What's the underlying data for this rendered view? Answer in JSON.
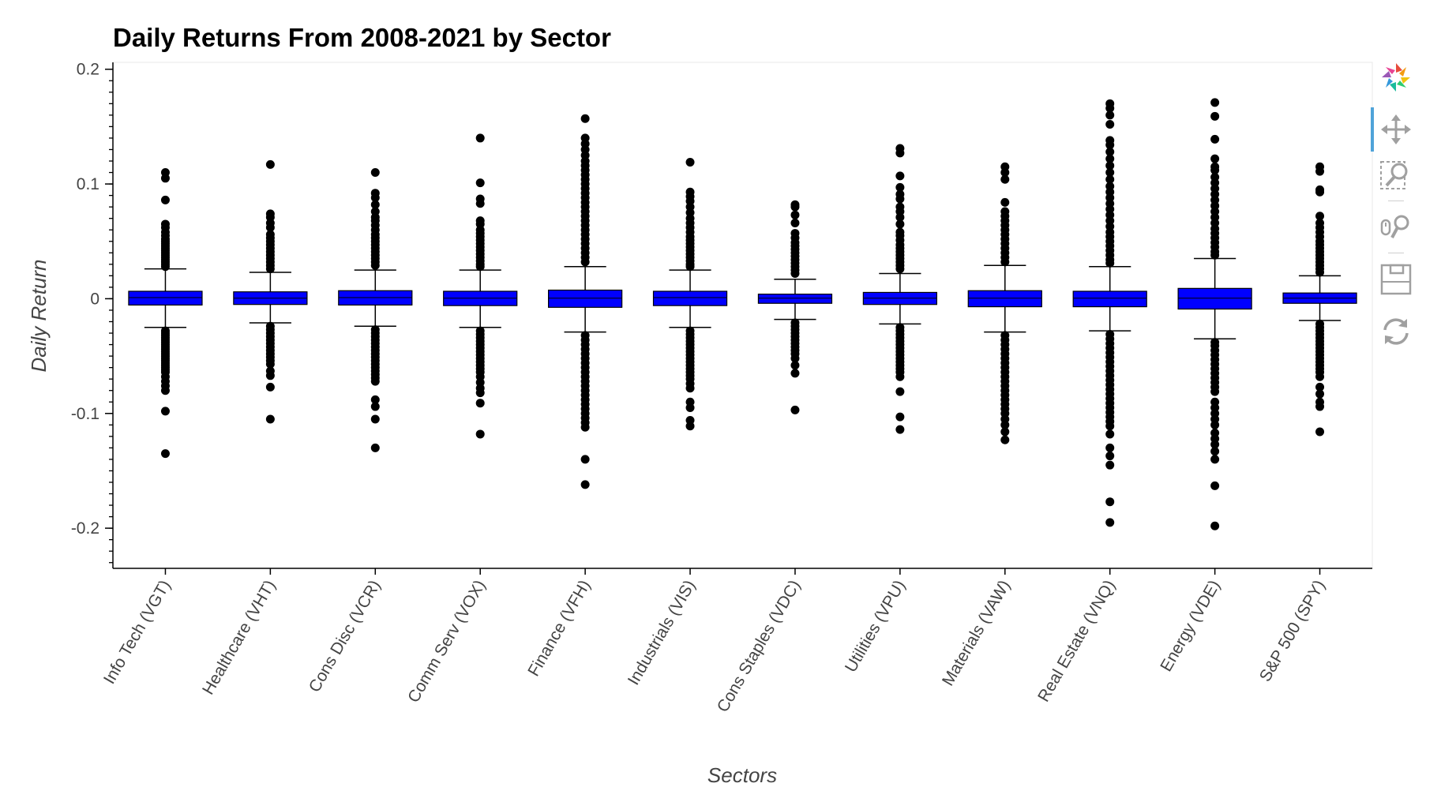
{
  "chart_data": {
    "type": "boxplot",
    "title": "Daily Returns From 2008-2021 by Sector",
    "xlabel": "Sectors",
    "ylabel": "Daily Return",
    "ylim": [
      -0.235,
      0.206
    ],
    "yticks": [
      {
        "value": 0.2,
        "label": "0.2"
      },
      {
        "value": 0.1,
        "label": "0.1"
      },
      {
        "value": 0,
        "label": "0"
      },
      {
        "value": -0.1,
        "label": "-0.1"
      },
      {
        "value": -0.2,
        "label": "-0.2"
      }
    ],
    "categories": [
      "Info Tech (VGT)",
      "Healthcare (VHT)",
      "Cons Disc (VCR)",
      "Comm Serv (VOX)",
      "Finance (VFH)",
      "Industrials (VIS)",
      "Cons Staples (VDC)",
      "Utilities (VPU)",
      "Materials (VAW)",
      "Real Estate (VNQ)",
      "Energy (VDE)",
      "S&P 500 (SPY)"
    ],
    "boxes": [
      {
        "q1": -0.0055,
        "median": 0.001,
        "q3": 0.0065,
        "low": -0.025,
        "high": 0.026,
        "outliers": [
          0.11,
          0.105,
          0.086,
          0.065,
          0.062,
          0.058,
          0.055,
          0.052,
          0.05,
          0.048,
          0.046,
          0.044,
          0.042,
          0.04,
          0.038,
          0.036,
          0.034,
          0.032,
          0.03,
          0.028,
          -0.028,
          -0.03,
          -0.032,
          -0.034,
          -0.036,
          -0.038,
          -0.04,
          -0.042,
          -0.044,
          -0.046,
          -0.048,
          -0.05,
          -0.052,
          -0.054,
          -0.056,
          -0.058,
          -0.06,
          -0.062,
          -0.064,
          -0.068,
          -0.072,
          -0.076,
          -0.08,
          -0.098,
          -0.135
        ]
      },
      {
        "q1": -0.005,
        "median": 0.0005,
        "q3": 0.006,
        "low": -0.021,
        "high": 0.023,
        "outliers": [
          0.117,
          0.074,
          0.071,
          0.066,
          0.062,
          0.056,
          0.053,
          0.05,
          0.047,
          0.044,
          0.041,
          0.038,
          0.035,
          0.032,
          0.029,
          0.026,
          -0.024,
          -0.027,
          -0.03,
          -0.033,
          -0.036,
          -0.039,
          -0.042,
          -0.045,
          -0.048,
          -0.051,
          -0.054,
          -0.057,
          -0.063,
          -0.067,
          -0.077,
          -0.105
        ]
      },
      {
        "q1": -0.0055,
        "median": 0.001,
        "q3": 0.007,
        "low": -0.024,
        "high": 0.025,
        "outliers": [
          0.11,
          0.092,
          0.088,
          0.082,
          0.076,
          0.071,
          0.068,
          0.064,
          0.06,
          0.056,
          0.053,
          0.05,
          0.047,
          0.044,
          0.041,
          0.038,
          0.035,
          0.032,
          0.029,
          -0.027,
          -0.03,
          -0.033,
          -0.036,
          -0.039,
          -0.042,
          -0.045,
          -0.048,
          -0.051,
          -0.054,
          -0.057,
          -0.06,
          -0.063,
          -0.066,
          -0.069,
          -0.072,
          -0.088,
          -0.094,
          -0.105,
          -0.13
        ]
      },
      {
        "q1": -0.006,
        "median": 0.0005,
        "q3": 0.0065,
        "low": -0.025,
        "high": 0.025,
        "outliers": [
          0.14,
          0.101,
          0.087,
          0.083,
          0.068,
          0.065,
          0.06,
          0.057,
          0.054,
          0.051,
          0.048,
          0.045,
          0.042,
          0.039,
          0.036,
          0.033,
          0.03,
          0.028,
          -0.028,
          -0.031,
          -0.034,
          -0.037,
          -0.04,
          -0.043,
          -0.046,
          -0.049,
          -0.052,
          -0.055,
          -0.058,
          -0.061,
          -0.064,
          -0.068,
          -0.073,
          -0.078,
          -0.082,
          -0.091,
          -0.118
        ]
      },
      {
        "q1": -0.0075,
        "median": 0.0005,
        "q3": 0.0075,
        "low": -0.029,
        "high": 0.028,
        "outliers": [
          0.157,
          0.14,
          0.135,
          0.13,
          0.125,
          0.12,
          0.116,
          0.112,
          0.108,
          0.104,
          0.1,
          0.096,
          0.092,
          0.088,
          0.084,
          0.08,
          0.076,
          0.072,
          0.068,
          0.064,
          0.06,
          0.056,
          0.052,
          0.048,
          0.044,
          0.04,
          0.036,
          0.032,
          -0.032,
          -0.036,
          -0.04,
          -0.044,
          -0.048,
          -0.052,
          -0.056,
          -0.06,
          -0.064,
          -0.068,
          -0.072,
          -0.076,
          -0.08,
          -0.084,
          -0.088,
          -0.092,
          -0.096,
          -0.1,
          -0.104,
          -0.108,
          -0.112,
          -0.14,
          -0.162
        ]
      },
      {
        "q1": -0.006,
        "median": 0.001,
        "q3": 0.0065,
        "low": -0.025,
        "high": 0.025,
        "outliers": [
          0.119,
          0.093,
          0.089,
          0.085,
          0.08,
          0.075,
          0.07,
          0.066,
          0.062,
          0.058,
          0.054,
          0.051,
          0.048,
          0.045,
          0.042,
          0.039,
          0.036,
          0.033,
          0.03,
          0.028,
          -0.028,
          -0.031,
          -0.034,
          -0.037,
          -0.04,
          -0.043,
          -0.046,
          -0.049,
          -0.052,
          -0.055,
          -0.058,
          -0.061,
          -0.064,
          -0.067,
          -0.07,
          -0.074,
          -0.078,
          -0.09,
          -0.095,
          -0.106,
          -0.111
        ]
      },
      {
        "q1": -0.004,
        "median": 0.0005,
        "q3": 0.004,
        "low": -0.018,
        "high": 0.017,
        "outliers": [
          0.082,
          0.08,
          0.073,
          0.066,
          0.057,
          0.053,
          0.049,
          0.046,
          0.043,
          0.04,
          0.037,
          0.034,
          0.031,
          0.028,
          0.025,
          0.022,
          -0.021,
          -0.024,
          -0.027,
          -0.03,
          -0.033,
          -0.036,
          -0.039,
          -0.042,
          -0.045,
          -0.048,
          -0.052,
          -0.058,
          -0.065,
          -0.097
        ]
      },
      {
        "q1": -0.005,
        "median": 0.0005,
        "q3": 0.0055,
        "low": -0.022,
        "high": 0.022,
        "outliers": [
          0.131,
          0.127,
          0.107,
          0.097,
          0.091,
          0.087,
          0.08,
          0.076,
          0.071,
          0.065,
          0.058,
          0.055,
          0.051,
          0.047,
          0.044,
          0.041,
          0.038,
          0.035,
          0.032,
          0.029,
          0.026,
          -0.025,
          -0.028,
          -0.031,
          -0.034,
          -0.037,
          -0.04,
          -0.043,
          -0.046,
          -0.049,
          -0.052,
          -0.055,
          -0.058,
          -0.061,
          -0.064,
          -0.068,
          -0.081,
          -0.103,
          -0.114
        ]
      },
      {
        "q1": -0.007,
        "median": 0.0005,
        "q3": 0.007,
        "low": -0.029,
        "high": 0.029,
        "outliers": [
          0.115,
          0.11,
          0.104,
          0.084,
          0.076,
          0.072,
          0.068,
          0.064,
          0.06,
          0.056,
          0.052,
          0.048,
          0.044,
          0.04,
          0.036,
          0.032,
          -0.032,
          -0.036,
          -0.04,
          -0.044,
          -0.048,
          -0.052,
          -0.056,
          -0.06,
          -0.064,
          -0.068,
          -0.072,
          -0.076,
          -0.08,
          -0.084,
          -0.088,
          -0.092,
          -0.096,
          -0.1,
          -0.105,
          -0.11,
          -0.116,
          -0.123
        ]
      },
      {
        "q1": -0.007,
        "median": 0.0005,
        "q3": 0.0065,
        "low": -0.028,
        "high": 0.028,
        "outliers": [
          0.17,
          0.166,
          0.16,
          0.152,
          0.138,
          0.134,
          0.128,
          0.122,
          0.116,
          0.11,
          0.104,
          0.098,
          0.093,
          0.088,
          0.083,
          0.078,
          0.073,
          0.068,
          0.063,
          0.058,
          0.054,
          0.05,
          0.046,
          0.042,
          0.038,
          0.034,
          0.031,
          -0.031,
          -0.035,
          -0.039,
          -0.043,
          -0.047,
          -0.051,
          -0.055,
          -0.059,
          -0.063,
          -0.067,
          -0.071,
          -0.075,
          -0.079,
          -0.083,
          -0.087,
          -0.091,
          -0.095,
          -0.099,
          -0.103,
          -0.107,
          -0.111,
          -0.118,
          -0.13,
          -0.137,
          -0.145,
          -0.177,
          -0.195
        ]
      },
      {
        "q1": -0.009,
        "median": 0.0005,
        "q3": 0.009,
        "low": -0.035,
        "high": 0.035,
        "outliers": [
          0.171,
          0.159,
          0.139,
          0.122,
          0.115,
          0.112,
          0.106,
          0.101,
          0.096,
          0.091,
          0.086,
          0.081,
          0.076,
          0.071,
          0.066,
          0.061,
          0.057,
          0.053,
          0.049,
          0.045,
          0.041,
          0.038,
          -0.038,
          -0.041,
          -0.045,
          -0.049,
          -0.053,
          -0.057,
          -0.061,
          -0.065,
          -0.069,
          -0.073,
          -0.077,
          -0.081,
          -0.09,
          -0.095,
          -0.1,
          -0.105,
          -0.11,
          -0.117,
          -0.122,
          -0.127,
          -0.133,
          -0.14,
          -0.163,
          -0.198
        ]
      },
      {
        "q1": -0.004,
        "median": 0.0005,
        "q3": 0.005,
        "low": -0.019,
        "high": 0.02,
        "outliers": [
          0.115,
          0.111,
          0.095,
          0.093,
          0.072,
          0.066,
          0.062,
          0.058,
          0.054,
          0.05,
          0.047,
          0.044,
          0.041,
          0.038,
          0.035,
          0.032,
          0.029,
          0.026,
          0.023,
          -0.022,
          -0.025,
          -0.028,
          -0.031,
          -0.034,
          -0.037,
          -0.04,
          -0.043,
          -0.046,
          -0.049,
          -0.052,
          -0.055,
          -0.058,
          -0.061,
          -0.064,
          -0.068,
          -0.077,
          -0.083,
          -0.09,
          -0.094,
          -0.116
        ]
      }
    ],
    "colors": {
      "box_fill": "#0000ff",
      "box_stroke": "#000000",
      "outlier": "#000000",
      "axis": "#000000"
    },
    "grid": false,
    "legend": "none"
  },
  "toolbar": {
    "tools": [
      {
        "icon": "bokeh-logo-icon",
        "tooltip": "Bokeh"
      },
      {
        "icon": "pan-icon",
        "tooltip": "Pan",
        "active": true
      },
      {
        "icon": "box-zoom-icon",
        "tooltip": "Box Zoom"
      },
      {
        "icon": "wheel-zoom-icon",
        "tooltip": "Wheel Zoom"
      },
      {
        "icon": "save-icon",
        "tooltip": "Save"
      },
      {
        "icon": "reset-icon",
        "tooltip": "Reset"
      }
    ]
  }
}
